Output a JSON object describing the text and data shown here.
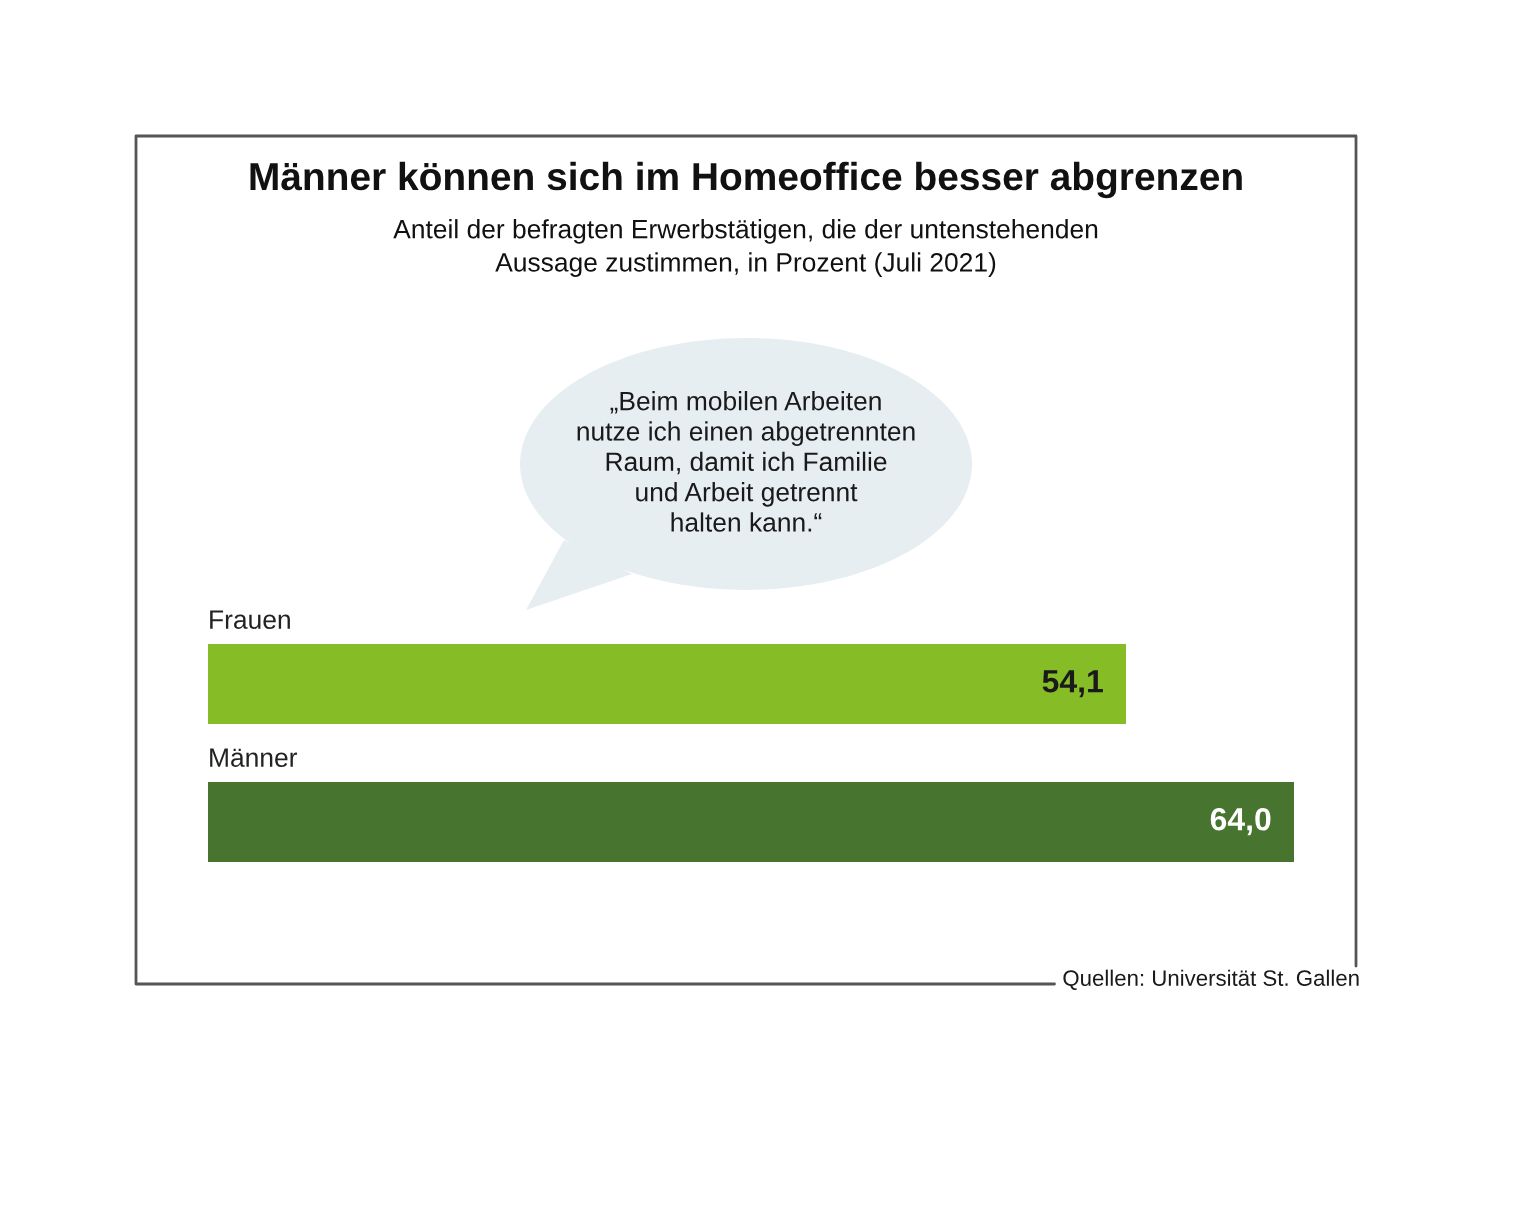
{
  "chart_data": {
    "type": "bar",
    "orientation": "horizontal",
    "title": "Männer können sich im Homeoffice besser abgrenzen",
    "subtitle": "Anteil der befragten Erwerbstätigen, die der untenstehenden\nAussage zustimmen, in Prozent (Juli 2021)",
    "categories": [
      "Frauen",
      "Männer"
    ],
    "values": [
      54.1,
      64.0
    ],
    "colors": [
      "#86bc25",
      "#47742e"
    ],
    "value_labels": [
      "54,1",
      "64,0"
    ],
    "xlim": [
      0,
      64
    ],
    "tick_labels": "y",
    "annotations": [
      "„Beim mobilen Arbeiten\nnutze ich einen abgetrennten\nRaum, damit ich Familie\nund Arbeit getrennt\nhalten kann.“",
      "Quellen: Universität St. Gallen"
    ]
  }
}
